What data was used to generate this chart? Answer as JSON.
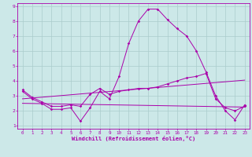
{
  "xlabel": "Windchill (Refroidissement éolien,°C)",
  "bg_color": "#cce8e8",
  "grid_color": "#aacccc",
  "line_color": "#aa00aa",
  "xlim": [
    -0.5,
    23.5
  ],
  "ylim": [
    0.8,
    9.2
  ],
  "xticks": [
    0,
    1,
    2,
    3,
    4,
    5,
    6,
    7,
    8,
    9,
    10,
    11,
    12,
    13,
    14,
    15,
    16,
    17,
    18,
    19,
    20,
    21,
    22,
    23
  ],
  "yticks": [
    1,
    2,
    3,
    4,
    5,
    6,
    7,
    8,
    9
  ],
  "series1_x": [
    0,
    1,
    2,
    3,
    4,
    5,
    6,
    7,
    8,
    9,
    10,
    11,
    12,
    13,
    14,
    15,
    16,
    17,
    18,
    19,
    20,
    21,
    22,
    23
  ],
  "series1_y": [
    3.3,
    2.8,
    2.5,
    2.1,
    2.1,
    2.2,
    1.3,
    2.2,
    3.3,
    2.8,
    4.3,
    6.5,
    8.0,
    8.8,
    8.8,
    8.1,
    7.5,
    7.0,
    6.0,
    4.6,
    3.0,
    2.0,
    1.4,
    2.4
  ],
  "series2_x": [
    0,
    1,
    2,
    3,
    4,
    5,
    6,
    7,
    8,
    9,
    10,
    11,
    12,
    13,
    14,
    15,
    16,
    17,
    18,
    19,
    20,
    21,
    22,
    23
  ],
  "series2_y": [
    3.4,
    2.9,
    2.6,
    2.3,
    2.3,
    2.4,
    2.3,
    3.1,
    3.5,
    3.1,
    3.3,
    3.4,
    3.5,
    3.5,
    3.6,
    3.8,
    4.0,
    4.2,
    4.3,
    4.5,
    2.8,
    2.2,
    2.0,
    2.3
  ],
  "series3_x": [
    0,
    23
  ],
  "series3_y": [
    2.5,
    2.25
  ],
  "series4_x": [
    0,
    23
  ],
  "series4_y": [
    2.8,
    4.05
  ]
}
